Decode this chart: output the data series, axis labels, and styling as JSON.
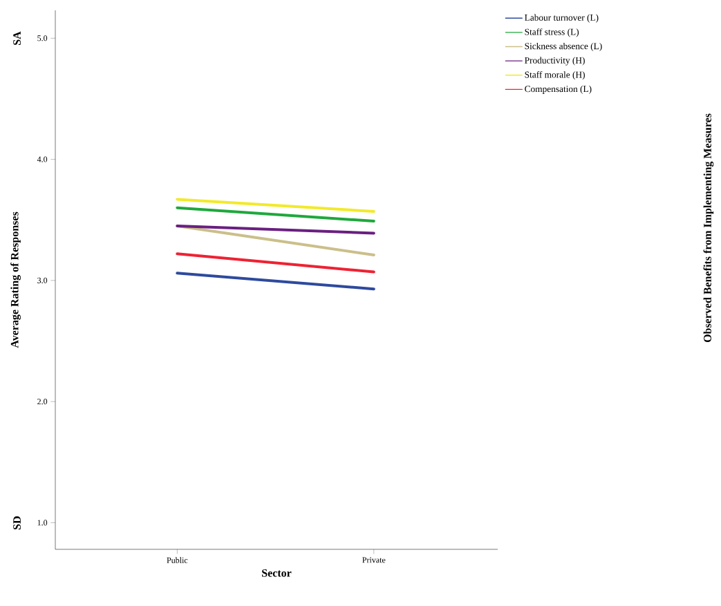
{
  "chart_data": {
    "type": "line",
    "title": "Observed Benefits from Implementing Measures",
    "xlabel": "Sector",
    "ylabel": "Average Rating of Responses",
    "categories": [
      "Public",
      "Private"
    ],
    "series": [
      {
        "name": "Labour turnover (L)",
        "color": "#2e4a9e",
        "values": [
          3.06,
          2.93
        ]
      },
      {
        "name": "Staff stress (L)",
        "color": "#1fa83c",
        "values": [
          3.6,
          3.49
        ]
      },
      {
        "name": "Sickness absence (L)",
        "color": "#cbbf8a",
        "values": [
          3.45,
          3.21
        ]
      },
      {
        "name": "Productivity (H)",
        "color": "#6a1f80",
        "values": [
          3.45,
          3.39
        ]
      },
      {
        "name": "Staff morale (H)",
        "color": "#f2ea2a",
        "values": [
          3.67,
          3.57
        ]
      },
      {
        "name": "Compensation (L)",
        "color": "#ee2233",
        "values": [
          3.22,
          3.07
        ]
      }
    ],
    "ylim": [
      0.78,
      5.23
    ],
    "yticks": [
      {
        "value": 1,
        "label": "1.0"
      },
      {
        "value": 2,
        "label": "2.0"
      },
      {
        "value": 3,
        "label": "3.0"
      },
      {
        "value": 4,
        "label": "4.0"
      },
      {
        "value": 5,
        "label": "5.0"
      }
    ],
    "annotations": [
      "SA",
      "SD"
    ],
    "legend": "top right",
    "grid": false,
    "marker": "none",
    "line_style": "solid"
  }
}
